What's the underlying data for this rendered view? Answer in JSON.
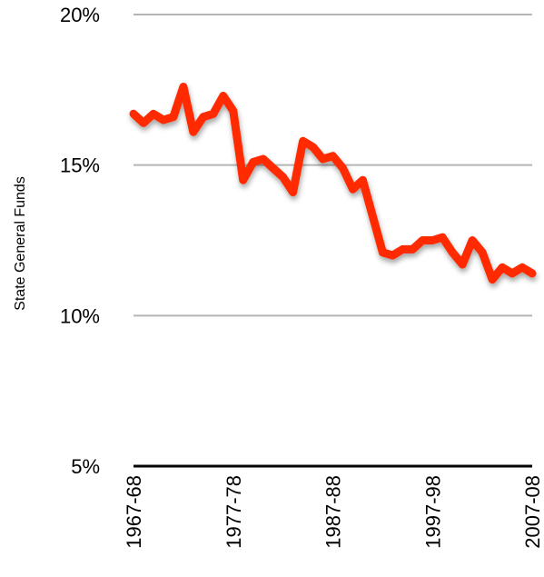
{
  "chart_data": {
    "type": "line",
    "title": "",
    "xlabel": "",
    "ylabel": "State General Funds",
    "ylim": [
      5,
      20
    ],
    "yticks": [
      "5%",
      "10%",
      "15%",
      "20%"
    ],
    "ytick_values": [
      5,
      10,
      15,
      20
    ],
    "xticks": [
      "1967-68",
      "1977-78",
      "1987-88",
      "1997-98",
      "2007-08"
    ],
    "grid": true,
    "series": [
      {
        "color": "#ff2a00",
        "x": [
          1967,
          1968,
          1969,
          1970,
          1971,
          1972,
          1973,
          1974,
          1975,
          1976,
          1977,
          1978,
          1979,
          1980,
          1981,
          1982,
          1983,
          1984,
          1985,
          1986,
          1987,
          1988,
          1989,
          1990,
          1991,
          1992,
          1993,
          1994,
          1995,
          1996,
          1997,
          1998,
          1999,
          2000,
          2001,
          2002,
          2003,
          2004,
          2005,
          2006,
          2007
        ],
        "values": [
          16.7,
          16.4,
          16.7,
          16.5,
          16.6,
          17.6,
          16.1,
          16.6,
          16.7,
          17.3,
          16.8,
          14.5,
          15.1,
          15.2,
          14.9,
          14.6,
          14.1,
          15.8,
          15.6,
          15.2,
          15.3,
          14.9,
          14.2,
          14.5,
          13.3,
          12.1,
          12.0,
          12.2,
          12.2,
          12.5,
          12.5,
          12.6,
          12.1,
          11.7,
          12.5,
          12.1,
          11.2,
          11.6,
          11.4,
          11.6,
          11.4
        ]
      }
    ]
  }
}
